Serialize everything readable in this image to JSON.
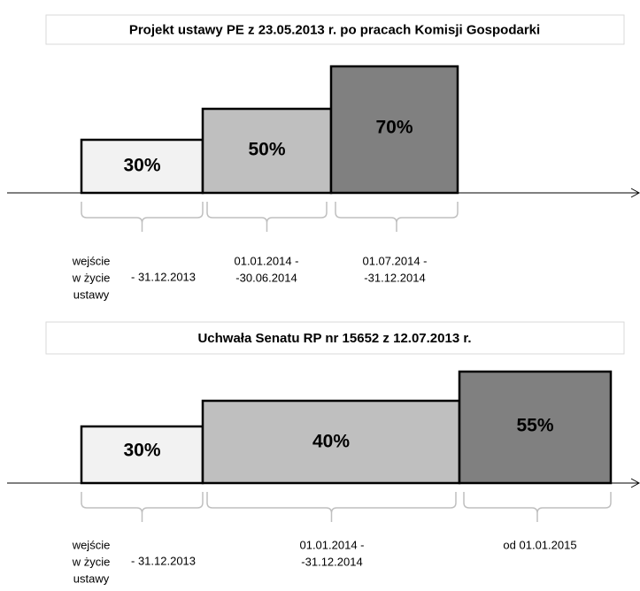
{
  "panels": [
    {
      "title": "Projekt ustawy PE z 23.05.2013 r. po pracach Komisji Gospodarki",
      "steps": [
        {
          "label": "30%",
          "note": [
            "wejście",
            "w życie",
            "ustawy"
          ],
          "period": [
            "- 31.12.2013"
          ]
        },
        {
          "label": "50%",
          "period": [
            "01.01.2014 -",
            "-30.06.2014"
          ]
        },
        {
          "label": "70%",
          "period": [
            "01.07.2014 -",
            "-31.12.2014"
          ]
        }
      ]
    },
    {
      "title": "Uchwała Senatu RP nr 15652 z 12.07.2013 r.",
      "steps": [
        {
          "label": "30%",
          "note": [
            "wejście",
            "w życie",
            "ustawy"
          ],
          "period": [
            "- 31.12.2013"
          ]
        },
        {
          "label": "40%",
          "period": [
            "01.01.2014 -",
            "-31.12.2014"
          ]
        },
        {
          "label": "55%",
          "period": [
            "od  01.01.2015"
          ]
        }
      ]
    }
  ]
}
